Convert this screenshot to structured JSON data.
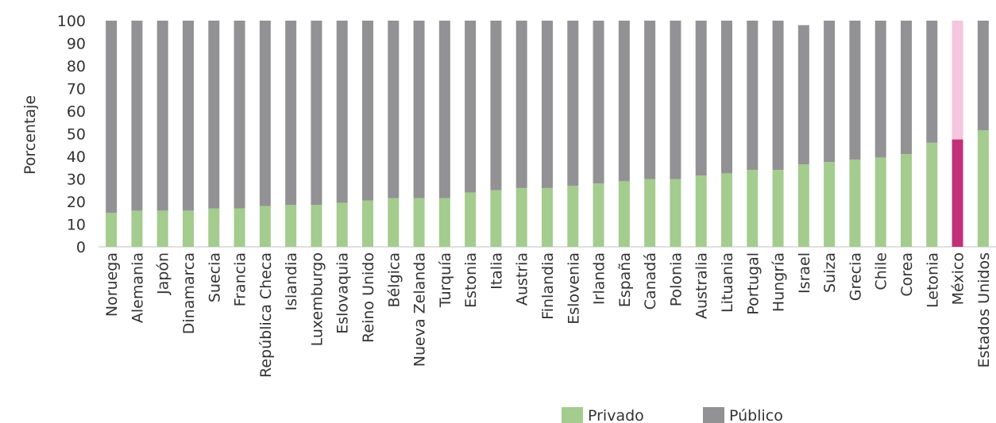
{
  "chart_data": {
    "type": "bar",
    "stacked": true,
    "title": "",
    "xlabel": "",
    "ylabel": "Porcentaje",
    "ylim": [
      0,
      100
    ],
    "yticks": [
      0,
      10,
      20,
      30,
      40,
      50,
      60,
      70,
      80,
      90,
      100
    ],
    "grid": false,
    "legend_position": "bottom-right",
    "categories": [
      "Noruega",
      "Alemania",
      "Japón",
      "Dinamarca",
      "Suecia",
      "Francia",
      "República Checa",
      "Islandia",
      "Luxemburgo",
      "Eslovaquia",
      "Reino Unido",
      "Bélgica",
      "Nueva Zelanda",
      "Turquía",
      "Estonia",
      "Italia",
      "Austria",
      "Finlandia",
      "Eslovenia",
      "Irlanda",
      "España",
      "Canadá",
      "Polonia",
      "Australia",
      "Lituania",
      "Portugal",
      "Hungría",
      "Israel",
      "Suiza",
      "Grecia",
      "Chile",
      "Corea",
      "Letonia",
      "México",
      "Estados Unidos"
    ],
    "series": [
      {
        "name": "Privado",
        "color": "#a3cc8e",
        "highlight_color": "#c2307a",
        "values": [
          15,
          16,
          16,
          16,
          17,
          17,
          18,
          18.5,
          18.5,
          19.5,
          20.5,
          21.5,
          21.5,
          21.5,
          24,
          25,
          26,
          26,
          27,
          28,
          29,
          30,
          30,
          31.5,
          32.5,
          34,
          34,
          36.5,
          37.5,
          38.5,
          39.5,
          41,
          46,
          47.5,
          51.5
        ]
      },
      {
        "name": "Público",
        "color": "#929294",
        "highlight_color": "#f5c6dc",
        "values": [
          85,
          84,
          84,
          84,
          83,
          83,
          82,
          81.5,
          81.5,
          80.5,
          79.5,
          78.5,
          78.5,
          78.5,
          76,
          75,
          74,
          74,
          73,
          72,
          71,
          70,
          70,
          68.5,
          67.5,
          66,
          66,
          61.5,
          62.5,
          61.5,
          60.5,
          59,
          54,
          52.5,
          48.5
        ]
      }
    ],
    "highlight_category": "México"
  }
}
